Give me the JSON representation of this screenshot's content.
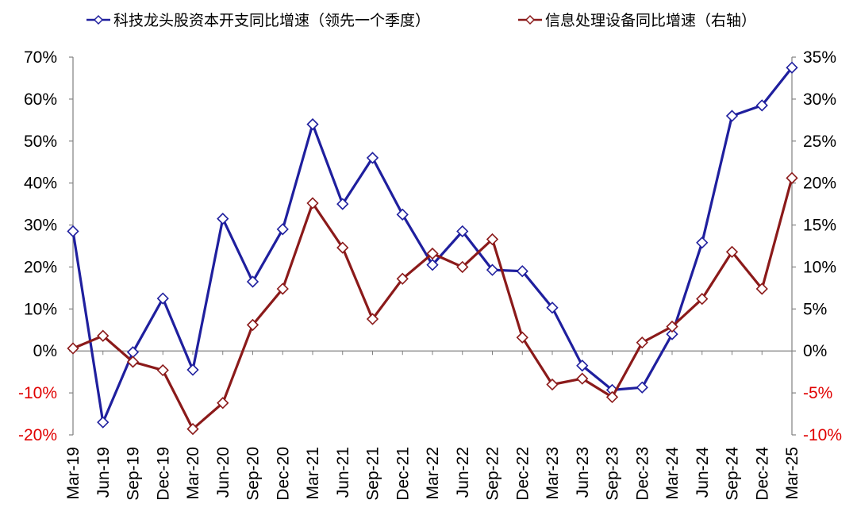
{
  "chart_data": {
    "type": "line",
    "categories": [
      "Mar-19",
      "Jun-19",
      "Sep-19",
      "Dec-19",
      "Mar-20",
      "Jun-20",
      "Sep-20",
      "Dec-20",
      "Mar-21",
      "Jun-21",
      "Sep-21",
      "Dec-21",
      "Mar-22",
      "Jun-22",
      "Sep-22",
      "Dec-22",
      "Mar-23",
      "Jun-23",
      "Sep-23",
      "Dec-23",
      "Mar-24",
      "Jun-24",
      "Sep-24",
      "Dec-24",
      "Mar-25"
    ],
    "series": [
      {
        "name": "科技龙头股资本开支同比增速（领先一个季度）",
        "axis": "left",
        "color": "#1f1f9e",
        "values": [
          28.5,
          -17,
          -0.3,
          12.5,
          -4.5,
          31.5,
          16.5,
          29,
          54,
          35,
          46,
          32.5,
          20.5,
          28.5,
          19.3,
          19,
          10.3,
          -3.5,
          -9.3,
          -8.7,
          4,
          25.8,
          56,
          58.5,
          67.5
        ]
      },
      {
        "name": "信息处理设备同比增速（右轴）",
        "axis": "right",
        "color": "#8b1a1a",
        "values": [
          0.3,
          1.8,
          -1.3,
          -2.3,
          -9.3,
          -6.2,
          3.1,
          7.4,
          17.6,
          12.3,
          3.8,
          8.6,
          11.6,
          10.0,
          13.3,
          1.6,
          -4.0,
          -3.3,
          -5.5,
          1.0,
          2.9,
          6.2,
          11.8,
          7.4,
          20.6
        ]
      }
    ],
    "y_left": {
      "min": -20,
      "max": 70,
      "step": 10,
      "tick_labels": [
        "-20%",
        "-10%",
        "0%",
        "10%",
        "20%",
        "30%",
        "40%",
        "50%",
        "60%",
        "70%"
      ]
    },
    "y_right": {
      "min": -10,
      "max": 35,
      "step": 5,
      "tick_labels": [
        "-10%",
        "-5%",
        "0%",
        "5%",
        "10%",
        "15%",
        "20%",
        "25%",
        "30%",
        "35%"
      ]
    },
    "grid": false,
    "legend_position": "top-center",
    "label_colors": {
      "positive": "#000000",
      "negative": "#e00000"
    },
    "marker": "diamond-open"
  }
}
